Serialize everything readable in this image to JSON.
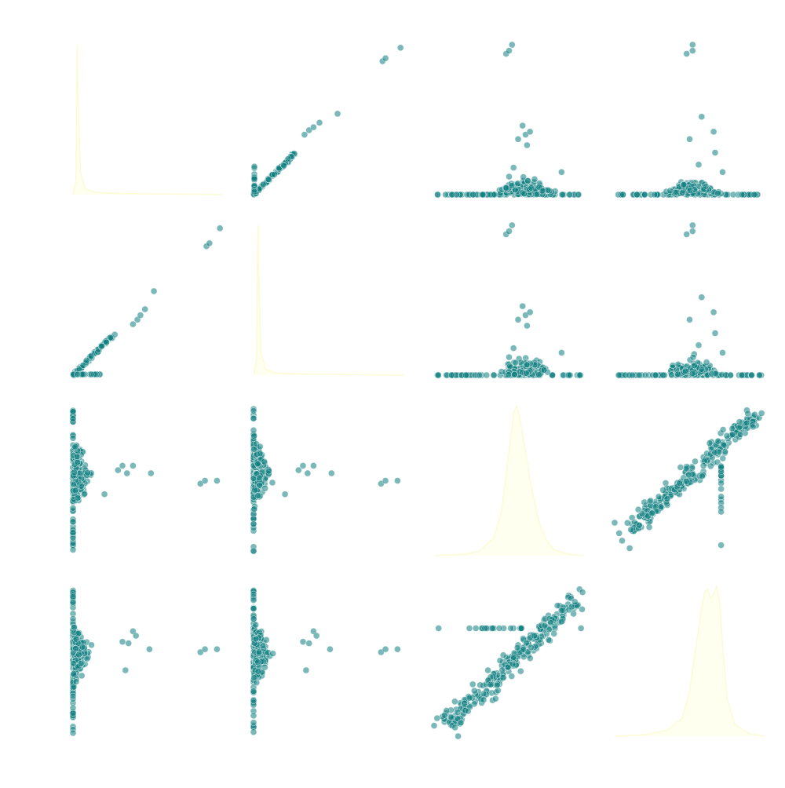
{
  "chart_data": {
    "type": "scatter",
    "layout": "pair-grid",
    "grid": false,
    "axes_visible": false,
    "diag_kind": "kde",
    "rows": 4,
    "cols": 4,
    "colors": {
      "point": "#0f7e80",
      "point_edge": "#e8f3f3",
      "kde_fill": "#fffff0",
      "kde_line": "#fbfbd6"
    },
    "diagonal": [
      {
        "curve": [
          [
            0,
            0.0
          ],
          [
            0.02,
            0.1
          ],
          [
            0.025,
            0.7
          ],
          [
            0.03,
            1.0
          ],
          [
            0.035,
            0.6
          ],
          [
            0.05,
            0.15
          ],
          [
            0.08,
            0.04
          ],
          [
            0.15,
            0.015
          ],
          [
            0.3,
            0.008
          ],
          [
            1.0,
            0.0
          ]
        ]
      },
      {
        "curve": [
          [
            0,
            0.0
          ],
          [
            0.02,
            0.1
          ],
          [
            0.025,
            0.7
          ],
          [
            0.03,
            1.0
          ],
          [
            0.035,
            0.6
          ],
          [
            0.05,
            0.15
          ],
          [
            0.08,
            0.04
          ],
          [
            0.15,
            0.015
          ],
          [
            0.3,
            0.008
          ],
          [
            1.0,
            0.0
          ]
        ]
      },
      {
        "curve": [
          [
            0,
            0.0
          ],
          [
            0.2,
            0.01
          ],
          [
            0.3,
            0.03
          ],
          [
            0.4,
            0.12
          ],
          [
            0.45,
            0.3
          ],
          [
            0.5,
            0.7
          ],
          [
            0.53,
            0.95
          ],
          [
            0.55,
            1.0
          ],
          [
            0.57,
            0.93
          ],
          [
            0.6,
            0.75
          ],
          [
            0.65,
            0.45
          ],
          [
            0.7,
            0.22
          ],
          [
            0.75,
            0.1
          ],
          [
            0.8,
            0.04
          ],
          [
            0.9,
            0.01
          ],
          [
            1.0,
            0.0
          ]
        ]
      },
      {
        "curve": [
          [
            0,
            0.0
          ],
          [
            0.2,
            0.01
          ],
          [
            0.35,
            0.04
          ],
          [
            0.45,
            0.12
          ],
          [
            0.5,
            0.3
          ],
          [
            0.55,
            0.65
          ],
          [
            0.58,
            0.85
          ],
          [
            0.6,
            0.96
          ],
          [
            0.62,
            0.98
          ],
          [
            0.64,
            0.92
          ],
          [
            0.66,
            0.95
          ],
          [
            0.68,
            1.0
          ],
          [
            0.7,
            0.9
          ],
          [
            0.72,
            0.6
          ],
          [
            0.75,
            0.25
          ],
          [
            0.8,
            0.08
          ],
          [
            0.9,
            0.015
          ],
          [
            1.0,
            0.0
          ]
        ]
      }
    ],
    "offdiag": [
      {
        "row": 0,
        "col": 1,
        "clusters": [
          {
            "kind": "line",
            "n": 80,
            "x": [
              0.0,
              0.27
            ],
            "y": [
              0.0,
              0.27
            ],
            "jitter": 0.008
          },
          {
            "kind": "vline",
            "n": 20,
            "x": 0.005,
            "y": [
              0.0,
              0.2
            ]
          }
        ],
        "points": [
          [
            0.34,
            0.4
          ],
          [
            0.37,
            0.43
          ],
          [
            0.4,
            0.45
          ],
          [
            0.44,
            0.48
          ],
          [
            0.56,
            0.54
          ],
          [
            0.86,
            0.89
          ],
          [
            0.88,
            0.91
          ],
          [
            0.98,
            0.98
          ]
        ]
      },
      {
        "row": 1,
        "col": 0,
        "clusters": [
          {
            "kind": "line",
            "n": 80,
            "x": [
              0.0,
              0.27
            ],
            "y": [
              0.0,
              0.27
            ],
            "jitter": 0.008
          },
          {
            "kind": "hline",
            "n": 20,
            "x": [
              0.0,
              0.2
            ],
            "y": 0.005
          }
        ],
        "points": [
          [
            0.4,
            0.34
          ],
          [
            0.43,
            0.37
          ],
          [
            0.45,
            0.4
          ],
          [
            0.48,
            0.44
          ],
          [
            0.54,
            0.56
          ],
          [
            0.89,
            0.86
          ],
          [
            0.91,
            0.88
          ],
          [
            0.98,
            0.98
          ]
        ]
      },
      {
        "row": 0,
        "col": 2,
        "clusters": [
          {
            "kind": "band",
            "n": 60,
            "x": [
              0.02,
              0.98
            ],
            "y": 0.0
          },
          {
            "kind": "tri",
            "n": 140,
            "cx": 0.6,
            "w": 0.32,
            "h": 0.2
          }
        ],
        "points": [
          [
            0.59,
            0.46
          ],
          [
            0.61,
            0.4
          ],
          [
            0.64,
            0.42
          ],
          [
            0.56,
            0.37
          ],
          [
            0.62,
            0.33
          ],
          [
            0.53,
            0.18
          ],
          [
            0.5,
            0.12
          ],
          [
            0.85,
            0.15
          ],
          [
            0.48,
            0.94
          ],
          [
            0.5,
            0.96
          ],
          [
            0.52,
            1.0
          ]
        ]
      },
      {
        "row": 0,
        "col": 3,
        "clusters": [
          {
            "kind": "band",
            "n": 60,
            "x": [
              0.02,
              0.98
            ],
            "y": 0.0
          },
          {
            "kind": "tri",
            "n": 140,
            "cx": 0.52,
            "w": 0.3,
            "h": 0.18
          }
        ],
        "points": [
          [
            0.58,
            0.52
          ],
          [
            0.5,
            0.37
          ],
          [
            0.66,
            0.42
          ],
          [
            0.67,
            0.28
          ],
          [
            0.56,
            0.2
          ],
          [
            0.72,
            0.15
          ],
          [
            0.48,
            0.94
          ],
          [
            0.52,
            0.96
          ],
          [
            0.52,
            1.0
          ]
        ]
      },
      {
        "row": 1,
        "col": 2,
        "clusters": [
          {
            "kind": "band",
            "n": 60,
            "x": [
              0.02,
              0.98
            ],
            "y": 0.0
          },
          {
            "kind": "tri",
            "n": 140,
            "cx": 0.6,
            "w": 0.32,
            "h": 0.2
          }
        ],
        "points": [
          [
            0.59,
            0.46
          ],
          [
            0.61,
            0.4
          ],
          [
            0.64,
            0.42
          ],
          [
            0.56,
            0.37
          ],
          [
            0.62,
            0.33
          ],
          [
            0.53,
            0.18
          ],
          [
            0.5,
            0.12
          ],
          [
            0.85,
            0.15
          ],
          [
            0.48,
            0.94
          ],
          [
            0.5,
            0.96
          ],
          [
            0.52,
            1.0
          ]
        ]
      },
      {
        "row": 1,
        "col": 3,
        "clusters": [
          {
            "kind": "band",
            "n": 60,
            "x": [
              0.02,
              0.98
            ],
            "y": 0.0
          },
          {
            "kind": "tri",
            "n": 140,
            "cx": 0.52,
            "w": 0.3,
            "h": 0.18
          }
        ],
        "points": [
          [
            0.58,
            0.52
          ],
          [
            0.5,
            0.37
          ],
          [
            0.66,
            0.42
          ],
          [
            0.67,
            0.28
          ],
          [
            0.56,
            0.2
          ],
          [
            0.72,
            0.15
          ],
          [
            0.48,
            0.94
          ],
          [
            0.52,
            0.96
          ],
          [
            0.52,
            1.0
          ]
        ]
      },
      {
        "row": 2,
        "col": 0,
        "clusters": [
          {
            "kind": "vband",
            "n": 60,
            "x": 0.0,
            "y": [
              0.02,
              0.98
            ]
          },
          {
            "kind": "rtri",
            "n": 140,
            "cy": 0.55,
            "h": 0.35,
            "w": 0.2
          }
        ],
        "points": [
          [
            0.3,
            0.57
          ],
          [
            0.33,
            0.6
          ],
          [
            0.36,
            0.55
          ],
          [
            0.4,
            0.6
          ],
          [
            0.52,
            0.55
          ],
          [
            0.21,
            0.41
          ],
          [
            0.85,
            0.48
          ],
          [
            0.88,
            0.5
          ],
          [
            0.96,
            0.5
          ]
        ]
      },
      {
        "row": 2,
        "col": 1,
        "clusters": [
          {
            "kind": "vband",
            "n": 60,
            "x": 0.0,
            "y": [
              0.02,
              0.98
            ]
          },
          {
            "kind": "rtri",
            "n": 140,
            "cy": 0.55,
            "h": 0.35,
            "w": 0.2
          }
        ],
        "points": [
          [
            0.3,
            0.57
          ],
          [
            0.33,
            0.6
          ],
          [
            0.36,
            0.55
          ],
          [
            0.4,
            0.6
          ],
          [
            0.52,
            0.55
          ],
          [
            0.21,
            0.41
          ],
          [
            0.85,
            0.48
          ],
          [
            0.88,
            0.5
          ],
          [
            0.96,
            0.5
          ]
        ]
      },
      {
        "row": 3,
        "col": 0,
        "clusters": [
          {
            "kind": "vband",
            "n": 60,
            "x": 0.0,
            "y": [
              0.02,
              0.98
            ]
          },
          {
            "kind": "rtri",
            "n": 140,
            "cy": 0.55,
            "h": 0.35,
            "w": 0.2
          }
        ],
        "points": [
          [
            0.33,
            0.63
          ],
          [
            0.37,
            0.62
          ],
          [
            0.4,
            0.7
          ],
          [
            0.42,
            0.67
          ],
          [
            0.35,
            0.44
          ],
          [
            0.51,
            0.58
          ],
          [
            0.85,
            0.56
          ],
          [
            0.88,
            0.58
          ],
          [
            0.96,
            0.58
          ]
        ]
      },
      {
        "row": 3,
        "col": 1,
        "clusters": [
          {
            "kind": "vband",
            "n": 60,
            "x": 0.0,
            "y": [
              0.02,
              0.98
            ]
          },
          {
            "kind": "rtri",
            "n": 140,
            "cy": 0.55,
            "h": 0.35,
            "w": 0.2
          }
        ],
        "points": [
          [
            0.33,
            0.63
          ],
          [
            0.37,
            0.62
          ],
          [
            0.4,
            0.7
          ],
          [
            0.42,
            0.67
          ],
          [
            0.35,
            0.44
          ],
          [
            0.51,
            0.58
          ],
          [
            0.85,
            0.56
          ],
          [
            0.88,
            0.58
          ],
          [
            0.96,
            0.58
          ]
        ]
      },
      {
        "row": 2,
        "col": 3,
        "clusters": [
          {
            "kind": "diag",
            "n": 260,
            "x": [
              0.1,
              0.95
            ],
            "y": [
              0.17,
              0.95
            ],
            "spread": 0.09
          },
          {
            "kind": "vline",
            "n": 18,
            "x": 0.71,
            "y": [
              0.28,
              0.6
            ]
          }
        ],
        "points": [
          [
            0.0,
            0.22
          ],
          [
            0.03,
            0.15
          ],
          [
            0.05,
            0.1
          ],
          [
            0.1,
            0.05
          ],
          [
            0.35,
            0.38
          ],
          [
            0.71,
            0.07
          ],
          [
            0.98,
            0.95
          ]
        ]
      },
      {
        "row": 3,
        "col": 2,
        "clusters": [
          {
            "kind": "diag",
            "n": 260,
            "x": [
              0.08,
              0.95
            ],
            "y": [
              0.08,
              0.9
            ],
            "spread": 0.09
          },
          {
            "kind": "hline",
            "n": 18,
            "x": [
              0.23,
              0.6
            ],
            "y": 0.72
          }
        ],
        "points": [
          [
            0.0,
            0.07
          ],
          [
            0.02,
            0.12
          ],
          [
            0.07,
            0.14
          ],
          [
            0.16,
            0.0
          ],
          [
            0.39,
            0.24
          ],
          [
            0.41,
            0.25
          ],
          [
            0.03,
            0.72
          ],
          [
            0.98,
            0.72
          ],
          [
            0.97,
            0.98
          ],
          [
            0.99,
            0.96
          ]
        ]
      }
    ]
  }
}
